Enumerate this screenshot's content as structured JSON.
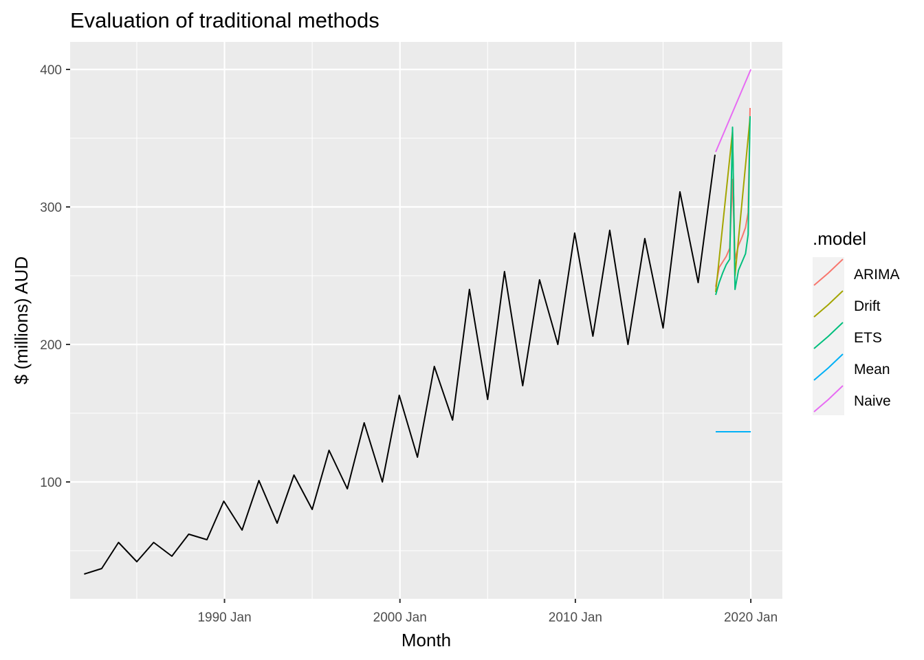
{
  "chart_data": {
    "type": "line",
    "title": "Evaluation of traditional methods",
    "xlabel": "Month",
    "ylabel": "$ (millions) AUD",
    "xlim": [
      1981.2,
      2021.8
    ],
    "ylim": [
      15,
      420
    ],
    "x_ticks": [
      {
        "value": 1990,
        "label": "1990 Jan"
      },
      {
        "value": 2000,
        "label": "2000 Jan"
      },
      {
        "value": 2010,
        "label": "2010 Jan"
      },
      {
        "value": 2020,
        "label": "2020 Jan"
      }
    ],
    "x_minor": [
      1985,
      1995,
      2005,
      2015
    ],
    "y_ticks": [
      {
        "value": 100,
        "label": "100"
      },
      {
        "value": 200,
        "label": "200"
      },
      {
        "value": 300,
        "label": "300"
      },
      {
        "value": 400,
        "label": "400"
      }
    ],
    "y_minor": [
      50,
      150,
      250,
      350
    ],
    "grid": true,
    "background_color": "#EBEBEB",
    "legend": {
      "title": ".model",
      "position": "right",
      "entries": [
        {
          "name": "ARIMA",
          "color": "#F8766D"
        },
        {
          "name": "Drift",
          "color": "#A3A500"
        },
        {
          "name": "ETS",
          "color": "#00BF7D"
        },
        {
          "name": "Mean",
          "color": "#00B0F6"
        },
        {
          "name": "Naive",
          "color": "#E76BF3"
        }
      ]
    },
    "history_color": "#000000",
    "history": {
      "x": [
        1982.0,
        1983.0,
        1983.96,
        1985.0,
        1985.96,
        1987.0,
        1987.96,
        1989.0,
        1989.96,
        1991.0,
        1991.96,
        1993.0,
        1993.96,
        1995.0,
        1995.96,
        1997.0,
        1997.96,
        1999.0,
        1999.96,
        2001.0,
        2001.96,
        2003.0,
        2003.96,
        2005.0,
        2005.96,
        2007.0,
        2007.96,
        2009.0,
        2009.96,
        2011.0,
        2011.96,
        2013.0,
        2013.96,
        2015.0,
        2015.96,
        2017.0,
        2017.96
      ],
      "y": [
        33,
        37,
        56,
        42,
        56,
        46,
        62,
        58,
        86,
        65,
        101,
        70,
        105,
        80,
        123,
        95,
        143,
        100,
        163,
        118,
        184,
        145,
        240,
        160,
        253,
        170,
        247,
        200,
        281,
        206,
        283,
        200,
        277,
        212,
        311,
        245,
        338
      ]
    },
    "series": [
      {
        "name": "ARIMA",
        "x": [
          2018.0,
          2018.2,
          2018.4,
          2018.6,
          2018.8,
          2018.96,
          2019.1,
          2019.3,
          2019.5,
          2019.7,
          2019.85,
          2019.96
        ],
        "y": [
          242,
          256,
          260,
          264,
          270,
          320,
          262,
          272,
          278,
          285,
          296,
          372
        ]
      },
      {
        "name": "Drift",
        "x": [
          2018.0,
          2018.96,
          2019.1,
          2019.96
        ],
        "y": [
          238,
          355,
          250,
          365
        ]
      },
      {
        "name": "ETS",
        "x": [
          2018.0,
          2018.2,
          2018.4,
          2018.6,
          2018.8,
          2018.96,
          2019.1,
          2019.3,
          2019.5,
          2019.7,
          2019.85,
          2019.96
        ],
        "y": [
          236,
          245,
          252,
          258,
          262,
          358,
          240,
          254,
          260,
          266,
          280,
          366
        ]
      },
      {
        "name": "Mean",
        "x": [
          2018.0,
          2020.0
        ],
        "y": [
          136.5,
          136.5
        ]
      },
      {
        "name": "Naive",
        "x": [
          2018.0,
          2020.0
        ],
        "y": [
          340,
          400
        ]
      }
    ]
  }
}
